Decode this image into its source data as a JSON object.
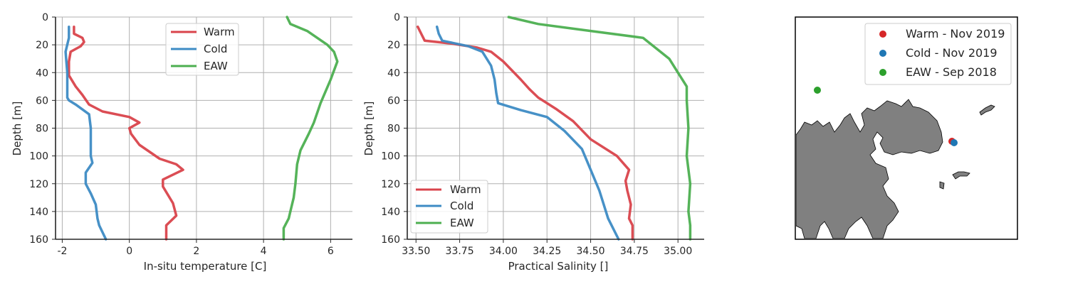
{
  "colors": {
    "warm": "#d9434b",
    "cold": "#3d8bc4",
    "eaw": "#4caf50",
    "land": "#808080",
    "grid": "#b0b0b0"
  },
  "chart_data": [
    {
      "type": "line",
      "xlabel": "In-situ temperature [C]",
      "ylabel": "Depth [m]",
      "xlim": [
        -2.2,
        6.65
      ],
      "ylim": [
        160,
        0
      ],
      "x_ticks": [
        "-2",
        "0",
        "2",
        "4",
        "6"
      ],
      "x_tick_values": [
        -2,
        0,
        2,
        4,
        6
      ],
      "y_ticks": [
        "0",
        "20",
        "40",
        "60",
        "80",
        "100",
        "120",
        "140",
        "160"
      ],
      "y_tick_values": [
        0,
        20,
        40,
        60,
        80,
        100,
        120,
        140,
        160
      ],
      "grid": true,
      "legend_position": "top-center",
      "series": [
        {
          "name": "Warm",
          "key": "warm",
          "x": [
            -1.65,
            -1.65,
            -1.4,
            -1.35,
            -1.45,
            -1.75,
            -1.8,
            -1.8,
            -1.6,
            -1.4,
            -1.2,
            -0.8,
            0.0,
            0.3,
            0.0,
            0.05,
            0.3,
            0.9,
            1.4,
            1.6,
            1.0,
            1.0,
            1.3,
            1.4,
            1.1,
            1.1
          ],
          "y": [
            7,
            12,
            15,
            18,
            21,
            25,
            32,
            42,
            50,
            56,
            63,
            68,
            72,
            76,
            80,
            84,
            92,
            102,
            106,
            110,
            117,
            122,
            134,
            143,
            150,
            160
          ]
        },
        {
          "name": "Cold",
          "key": "cold",
          "x": [
            -1.8,
            -1.8,
            -1.9,
            -1.85,
            -1.85,
            -1.85,
            -1.8,
            -1.6,
            -1.2,
            -1.15,
            -1.15,
            -1.1,
            -1.3,
            -1.3,
            -1.15,
            -1.0,
            -0.95,
            -0.9,
            -0.7
          ],
          "y": [
            7,
            15,
            25,
            40,
            50,
            58,
            60,
            63,
            70,
            80,
            100,
            105,
            112,
            120,
            127,
            135,
            145,
            150,
            160
          ]
        },
        {
          "name": "EAW",
          "key": "eaw",
          "x": [
            4.7,
            4.8,
            5.3,
            5.9,
            6.1,
            6.2,
            6.0,
            5.7,
            5.5,
            5.35,
            5.1,
            5.0,
            4.95,
            4.9,
            4.8,
            4.75,
            4.6,
            4.6
          ],
          "y": [
            0,
            5,
            10,
            20,
            25,
            32,
            45,
            62,
            76,
            84,
            96,
            106,
            120,
            130,
            140,
            145,
            152,
            160
          ]
        }
      ]
    },
    {
      "type": "line",
      "xlabel": "Practical Salinity []",
      "ylabel": "Depth [m]",
      "xlim": [
        33.45,
        35.15
      ],
      "ylim": [
        160,
        0
      ],
      "x_ticks": [
        "33.50",
        "33.75",
        "34.00",
        "34.25",
        "34.50",
        "34.75",
        "35.00"
      ],
      "x_tick_values": [
        33.5,
        33.75,
        34.0,
        34.25,
        34.5,
        34.75,
        35.0
      ],
      "y_ticks": [
        "0",
        "20",
        "40",
        "60",
        "80",
        "100",
        "120",
        "140",
        "160"
      ],
      "y_tick_values": [
        0,
        20,
        40,
        60,
        80,
        100,
        120,
        140,
        160
      ],
      "grid": true,
      "legend_position": "bottom-left",
      "series": [
        {
          "name": "Warm",
          "key": "warm",
          "x": [
            33.51,
            33.53,
            33.55,
            33.7,
            33.85,
            33.93,
            34.0,
            34.1,
            34.15,
            34.2,
            34.3,
            34.4,
            34.5,
            34.65,
            34.72,
            34.7,
            34.71,
            34.73,
            34.72,
            34.74,
            34.74
          ],
          "y": [
            7,
            12,
            17,
            19,
            22,
            25,
            32,
            45,
            52,
            58,
            66,
            75,
            88,
            100,
            110,
            118,
            125,
            135,
            145,
            150,
            160
          ]
        },
        {
          "name": "Cold",
          "key": "cold",
          "x": [
            33.62,
            33.63,
            33.65,
            33.8,
            33.88,
            33.93,
            33.95,
            33.96,
            33.97,
            34.1,
            34.25,
            34.35,
            34.45,
            34.5,
            34.55,
            34.6,
            34.66
          ],
          "y": [
            7,
            12,
            17,
            21,
            25,
            35,
            45,
            55,
            62,
            67,
            72,
            82,
            95,
            110,
            125,
            145,
            160
          ]
        },
        {
          "name": "EAW",
          "key": "eaw",
          "x": [
            34.03,
            34.2,
            34.5,
            34.8,
            34.85,
            34.95,
            35.0,
            35.05,
            35.05,
            35.06,
            35.05,
            35.07,
            35.06,
            35.07,
            35.07
          ],
          "y": [
            0,
            5,
            10,
            15,
            20,
            30,
            40,
            50,
            60,
            80,
            100,
            120,
            140,
            150,
            160
          ]
        }
      ]
    }
  ],
  "map": {
    "legend": [
      {
        "label": "Warm - Nov 2019",
        "key": "warm"
      },
      {
        "label": "Cold - Nov 2019",
        "key": "cold"
      },
      {
        "label": "EAW - Sep 2018",
        "key": "eaw"
      }
    ]
  }
}
